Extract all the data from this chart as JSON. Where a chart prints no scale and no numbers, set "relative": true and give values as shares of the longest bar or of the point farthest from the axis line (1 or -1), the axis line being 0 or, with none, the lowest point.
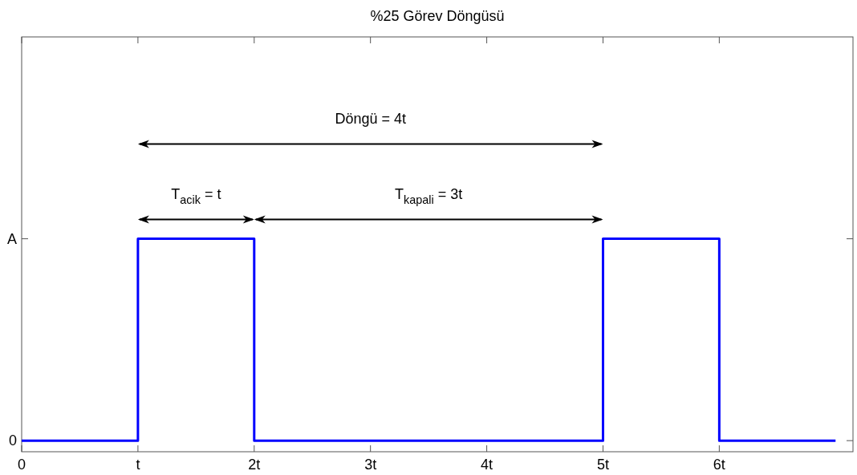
{
  "chart_data": {
    "type": "step",
    "title": "%25 Görev Döngüsü",
    "x": [
      0,
      1,
      2,
      5,
      6,
      7
    ],
    "series": [
      {
        "color": "#0000ff",
        "values": [
          0,
          1,
          0,
          1,
          0,
          0
        ]
      }
    ],
    "relative": true,
    "xlim": [
      0,
      7.15
    ],
    "xticks": [
      0,
      {
        "value": 1,
        "label": "t"
      },
      {
        "value": 2,
        "label": "2t"
      },
      {
        "value": 3,
        "label": "3t"
      },
      {
        "value": 4,
        "label": "4t"
      },
      {
        "value": 5,
        "label": "5t"
      },
      {
        "value": 6,
        "label": "6t"
      }
    ],
    "grid": false,
    "annotations": [
      "Döngü = 4t",
      "T$_{acik}$ = t",
      "T$_{kapali}$ = 3t",
      "0",
      "A"
    ]
  }
}
